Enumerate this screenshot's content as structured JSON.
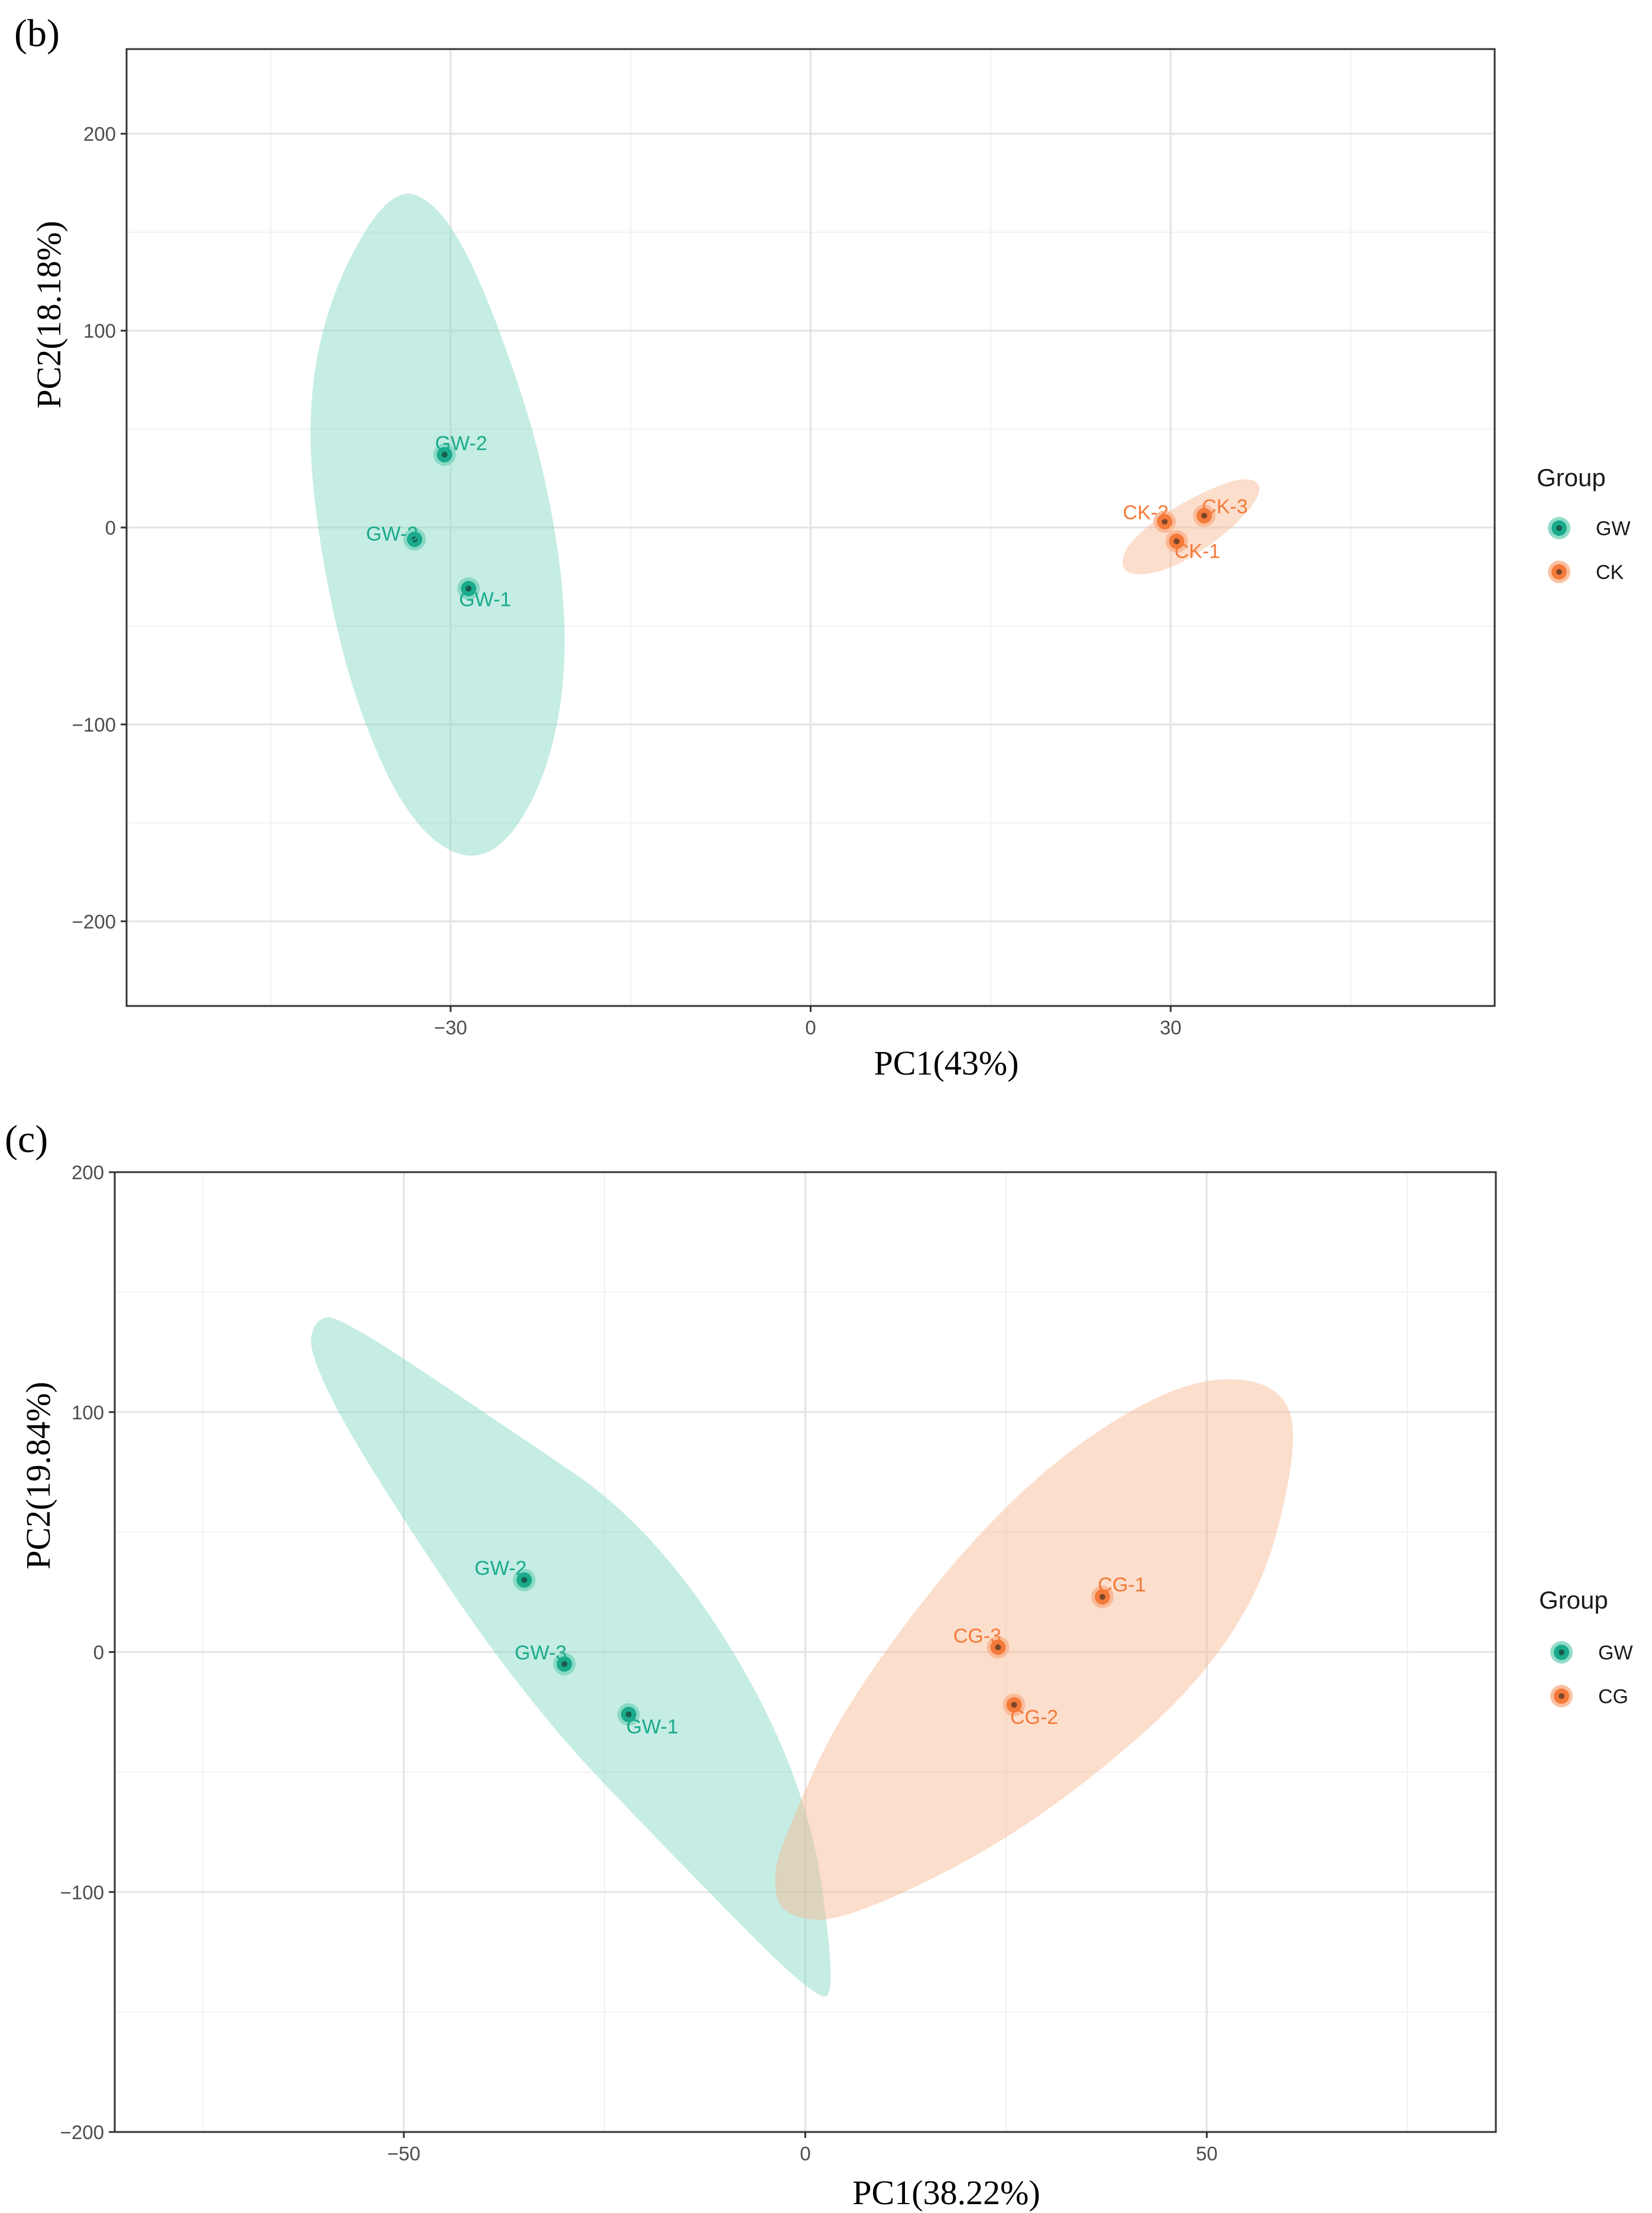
{
  "colors": {
    "GW": "#1aaa8c",
    "other": "#f47a3a",
    "gw_fill": "#7fd6c0",
    "other_fill": "#f9b58f"
  },
  "chart_data": [
    {
      "type": "scatter",
      "panel_label": "(b)",
      "xlabel": "PC1(43%)",
      "ylabel": "PC2(18.18%)",
      "xlim": [
        -57,
        57
      ],
      "ylim": [
        -243,
        243
      ],
      "xticks": [
        -30,
        0,
        30
      ],
      "xtick_labels": [
        "−30",
        "0",
        "30"
      ],
      "yticks": [
        -200,
        -100,
        0,
        100,
        200
      ],
      "ytick_labels": [
        "−200",
        "−100",
        "0",
        "100",
        "200"
      ],
      "legend_title": "Group",
      "legend": [
        {
          "label": "GW",
          "group": "GW"
        },
        {
          "label": "CK",
          "group": "other"
        }
      ],
      "ellipses": [
        {
          "group": "GW",
          "points": [
            [
              -35,
              173
            ],
            [
              -40,
              120
            ],
            [
              -42,
              60
            ],
            [
              -41,
              -10
            ],
            [
              -38,
              -90
            ],
            [
              -33,
              -155
            ],
            [
              -27,
              -173
            ],
            [
              -22,
              -130
            ],
            [
              -20,
              -60
            ],
            [
              -22,
              30
            ],
            [
              -27,
              120
            ],
            [
              -31,
              165
            ]
          ]
        },
        {
          "group": "other",
          "points": [
            [
              26,
              -10
            ],
            [
              30,
              10
            ],
            [
              36,
              27
            ],
            [
              38,
              20
            ],
            [
              35,
              -2
            ],
            [
              30,
              -22
            ],
            [
              26,
              -25
            ]
          ]
        }
      ],
      "points": [
        {
          "label": "GW-2",
          "x": -30.5,
          "y": 37,
          "group": "GW",
          "label_dx": 28,
          "label_dy": 20
        },
        {
          "label": "GW-3",
          "x": -33,
          "y": -6,
          "group": "GW",
          "label_dx": -38,
          "label_dy": 10
        },
        {
          "label": "GW-1",
          "x": -28.5,
          "y": -31,
          "group": "GW",
          "label_dx": 28,
          "label_dy": -18
        },
        {
          "label": "CK-2",
          "x": 29.5,
          "y": 3,
          "group": "other",
          "label_dx": -32,
          "label_dy": 16
        },
        {
          "label": "CK-3",
          "x": 32.8,
          "y": 6,
          "group": "other",
          "label_dx": 35,
          "label_dy": 16
        },
        {
          "label": "CK-1",
          "x": 30.5,
          "y": -7,
          "group": "other",
          "label_dx": 35,
          "label_dy": -16
        }
      ]
    },
    {
      "type": "scatter",
      "panel_label": "(c)",
      "xlabel": "PC1(38.22%)",
      "ylabel": "PC2(19.84%)",
      "xlim": [
        -86,
        86
      ],
      "ylim": [
        -200,
        200
      ],
      "xticks": [
        -50,
        0,
        50
      ],
      "xtick_labels": [
        "−50",
        "0",
        "50"
      ],
      "yticks": [
        -200,
        -100,
        0,
        100,
        200
      ],
      "ytick_labels": [
        "−200",
        "−100",
        "0",
        "100",
        "200"
      ],
      "legend_title": "Group",
      "legend": [
        {
          "label": "GW",
          "group": "GW"
        },
        {
          "label": "CG",
          "group": "other"
        }
      ],
      "ellipses": [
        {
          "group": "GW",
          "points": [
            [
              -61,
              139
            ],
            [
              -58,
              140
            ],
            [
              -40,
              100
            ],
            [
              -18,
              50
            ],
            [
              0,
              -50
            ],
            [
              4,
              -143
            ],
            [
              1,
              -144
            ],
            [
              -15,
              -90
            ],
            [
              -35,
              -20
            ],
            [
              -55,
              80
            ],
            [
              -62,
              125
            ]
          ]
        },
        {
          "group": "other",
          "points": [
            [
              -4,
              -95
            ],
            [
              -3,
              -110
            ],
            [
              5,
              -113
            ],
            [
              30,
              -70
            ],
            [
              55,
              5
            ],
            [
              62,
              90
            ],
            [
              58,
              115
            ],
            [
              45,
              112
            ],
            [
              25,
              65
            ],
            [
              5,
              -20
            ],
            [
              -3,
              -80
            ]
          ]
        }
      ],
      "points": [
        {
          "label": "GW-2",
          "x": -35,
          "y": 30,
          "group": "GW",
          "label_dx": -40,
          "label_dy": 21
        },
        {
          "label": "GW-3",
          "x": -30,
          "y": -5,
          "group": "GW",
          "label_dx": -40,
          "label_dy": 20
        },
        {
          "label": "GW-1",
          "x": -22,
          "y": -26,
          "group": "GW",
          "label_dx": 40,
          "label_dy": -20
        },
        {
          "label": "CG-1",
          "x": 37,
          "y": 23,
          "group": "other",
          "label_dx": 33,
          "label_dy": 21
        },
        {
          "label": "CG-3",
          "x": 24,
          "y": 2,
          "group": "other",
          "label_dx": -35,
          "label_dy": 20
        },
        {
          "label": "CG-2",
          "x": 26,
          "y": -22,
          "group": "other",
          "label_dx": 34,
          "label_dy": -20
        }
      ]
    }
  ]
}
